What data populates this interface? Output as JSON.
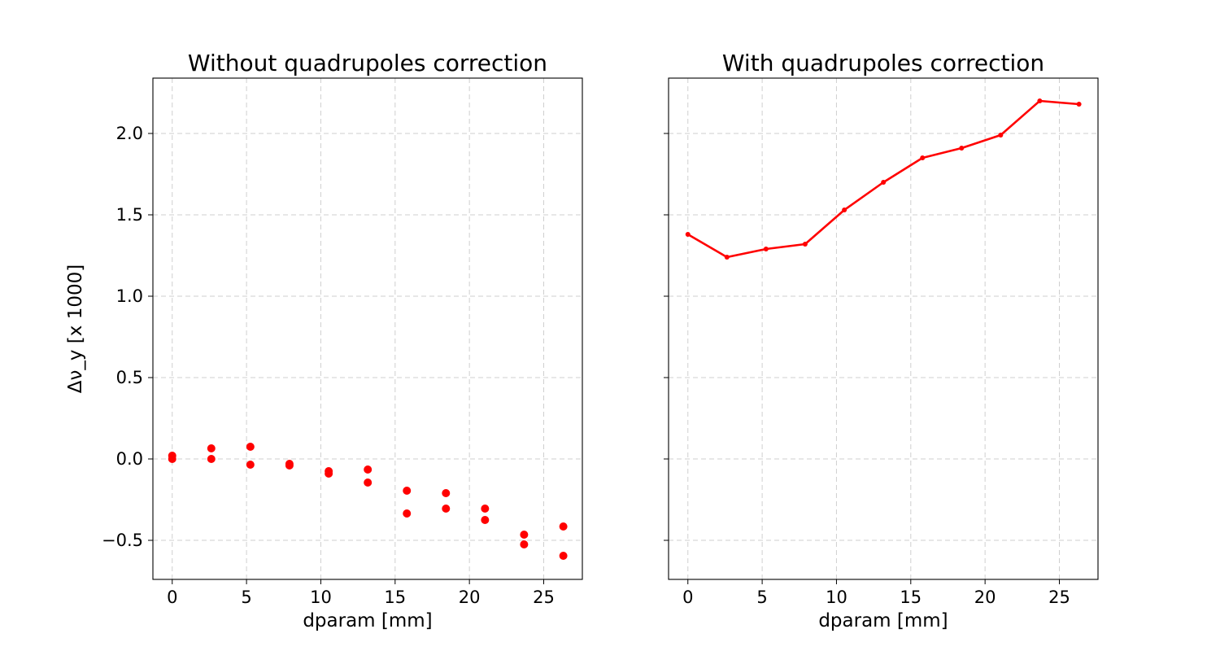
{
  "chart_data": [
    {
      "type": "scatter",
      "title": "Without quadrupoles correction",
      "xlabel": "dparam [mm]",
      "ylabel": "Δν_y [x 1000]",
      "xlim": [
        -1.3,
        27.6
      ],
      "ylim": [
        -0.74,
        2.34
      ],
      "xticks": [
        0,
        5,
        10,
        15,
        20,
        25
      ],
      "yticks": [
        -0.5,
        0.0,
        0.5,
        1.0,
        1.5,
        2.0
      ],
      "ytick_labels": [
        "−0.5",
        "0.0",
        "0.5",
        "1.0",
        "1.5",
        "2.0"
      ],
      "grid": true,
      "color": "#ff0000",
      "x": [
        0,
        0,
        2.63,
        2.63,
        5.26,
        5.26,
        7.89,
        7.89,
        10.53,
        10.53,
        13.16,
        13.16,
        15.79,
        15.79,
        18.42,
        18.42,
        21.05,
        21.05,
        23.68,
        23.68,
        26.32,
        26.32
      ],
      "y": [
        0.02,
        0.0,
        0.065,
        0.0,
        0.075,
        -0.035,
        -0.03,
        -0.04,
        -0.075,
        -0.09,
        -0.065,
        -0.145,
        -0.195,
        -0.335,
        -0.21,
        -0.305,
        -0.305,
        -0.375,
        -0.465,
        -0.525,
        -0.415,
        -0.595
      ]
    },
    {
      "type": "line",
      "title": "With quadrupoles correction",
      "xlabel": "dparam [mm]",
      "xlim": [
        -1.3,
        27.6
      ],
      "ylim": [
        -0.74,
        2.34
      ],
      "xticks": [
        0,
        5,
        10,
        15,
        20,
        25
      ],
      "yticks": [
        -0.5,
        0.0,
        0.5,
        1.0,
        1.5,
        2.0
      ],
      "grid": true,
      "color": "#ff0000",
      "x": [
        0,
        2.63,
        5.26,
        7.89,
        10.53,
        13.16,
        15.79,
        18.42,
        21.05,
        23.68,
        26.32
      ],
      "y": [
        1.38,
        1.24,
        1.29,
        1.32,
        1.53,
        1.7,
        1.85,
        1.91,
        1.99,
        2.2,
        2.18
      ]
    }
  ]
}
